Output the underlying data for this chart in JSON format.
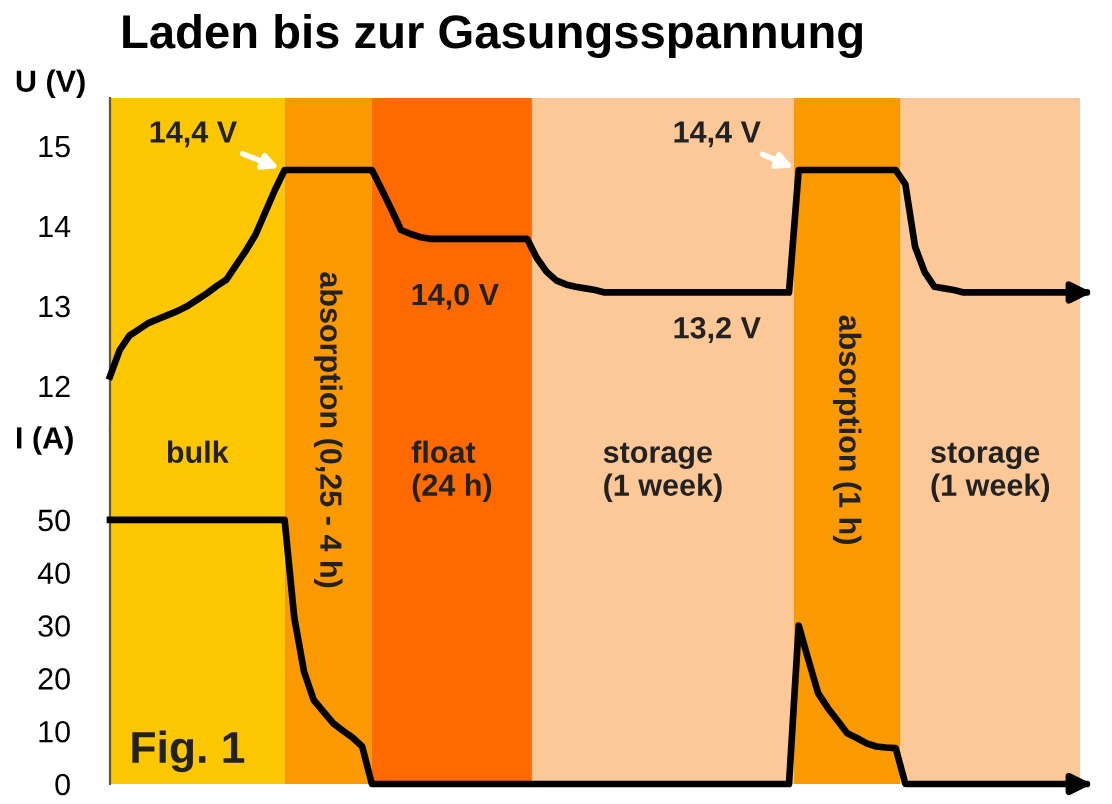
{
  "chart_data": [
    {
      "type": "line",
      "title": "Laden bis zur Gasungsspannung",
      "ylabel": "U (V)",
      "ylim": [
        11.45,
        15.6
      ],
      "yticks": [
        12,
        13,
        14,
        15
      ],
      "tick_labels": "y",
      "categories": [
        null,
        null,
        null,
        null,
        null,
        null,
        null,
        null,
        null,
        null,
        null,
        null,
        null,
        null,
        null,
        null,
        null,
        null,
        null,
        null,
        null,
        null,
        null,
        null,
        null,
        null,
        null,
        null,
        null,
        null,
        null,
        null,
        null,
        null,
        null,
        null,
        null,
        null,
        null,
        null,
        null,
        null,
        null,
        null,
        null,
        null,
        null,
        null,
        null,
        null,
        null,
        null,
        null,
        null,
        null,
        null,
        null,
        null,
        null,
        null,
        null,
        null,
        null,
        null,
        null,
        null,
        null,
        null,
        null,
        null,
        null,
        null,
        null,
        null,
        null,
        null,
        null,
        null,
        null,
        null,
        null,
        null,
        null,
        null,
        null,
        null,
        null,
        null,
        null,
        null,
        null,
        null,
        null,
        null,
        null,
        null,
        null,
        null,
        null,
        null,
        null
      ],
      "series": [
        {
          "color": "#000000",
          "values": [
            12.12,
            12.45,
            12.63,
            12.71,
            12.79,
            12.84,
            12.89,
            12.94,
            13.0,
            13.08,
            13.16,
            13.25,
            13.33,
            13.51,
            13.69,
            13.89,
            14.17,
            14.45,
            14.7,
            14.7,
            14.7,
            14.7,
            14.7,
            14.7,
            14.7,
            14.7,
            14.7,
            14.7,
            14.46,
            14.21,
            13.95,
            13.9,
            13.86,
            13.84,
            13.84,
            13.84,
            13.84,
            13.84,
            13.84,
            13.84,
            13.84,
            13.84,
            13.84,
            13.84,
            13.6,
            13.43,
            13.32,
            13.27,
            13.24,
            13.22,
            13.2,
            13.17,
            13.17,
            13.17,
            13.17,
            13.17,
            13.17,
            13.17,
            13.17,
            13.17,
            13.17,
            13.17,
            13.17,
            13.17,
            13.17,
            13.17,
            13.17,
            13.17,
            13.17,
            13.17,
            13.17,
            14.7,
            14.7,
            14.7,
            14.7,
            14.7,
            14.7,
            14.7,
            14.7,
            14.7,
            14.7,
            14.7,
            14.52,
            13.74,
            13.42,
            13.24,
            13.22,
            13.2,
            13.17,
            13.17,
            13.17,
            13.17,
            13.17,
            13.17,
            13.17,
            13.17,
            13.17,
            13.17,
            13.17,
            13.17,
            13.17
          ]
        }
      ],
      "annotations": [
        "14,4 V",
        "14,0 V",
        "13,2 V",
        "14,4 V"
      ]
    },
    {
      "type": "line",
      "ylabel": "I (A)",
      "ylim": [
        0,
        67
      ],
      "yticks": [
        0,
        10,
        20,
        30,
        40,
        50
      ],
      "tick_labels": "y",
      "categories": [
        null,
        null,
        null,
        null,
        null,
        null,
        null,
        null,
        null,
        null,
        null,
        null,
        null,
        null,
        null,
        null,
        null,
        null,
        null,
        null,
        null,
        null,
        null,
        null,
        null,
        null,
        null,
        null,
        null,
        null,
        null,
        null,
        null,
        null,
        null,
        null,
        null,
        null,
        null,
        null,
        null,
        null,
        null,
        null,
        null,
        null,
        null,
        null,
        null,
        null,
        null,
        null,
        null,
        null,
        null,
        null,
        null,
        null,
        null,
        null,
        null,
        null,
        null,
        null,
        null,
        null,
        null,
        null,
        null,
        null,
        null,
        null,
        null,
        null,
        null,
        null,
        null,
        null,
        null,
        null,
        null,
        null,
        null,
        null,
        null,
        null,
        null,
        null,
        null,
        null,
        null,
        null,
        null,
        null,
        null,
        null,
        null,
        null,
        null,
        null,
        null
      ],
      "series": [
        {
          "color": "#000000",
          "values": [
            50,
            50,
            50,
            50,
            50,
            50,
            50,
            50,
            50,
            50,
            50,
            50,
            50,
            50,
            50,
            50,
            50,
            50,
            50,
            31.5,
            21.3,
            15.9,
            13.7,
            11.5,
            10.1,
            8.8,
            7.1,
            0,
            0,
            0,
            0,
            0,
            0,
            0,
            0,
            0,
            0,
            0,
            0,
            0,
            0,
            0,
            0,
            0,
            0,
            0,
            0,
            0,
            0,
            0,
            0,
            0,
            0,
            0,
            0,
            0,
            0,
            0,
            0,
            0,
            0,
            0,
            0,
            0,
            0,
            0,
            0,
            0,
            0,
            0,
            0,
            30,
            23.5,
            17.2,
            14.4,
            12,
            9.6,
            8.7,
            7.7,
            7.1,
            6.9,
            6.8,
            0,
            0,
            0,
            0,
            0,
            0,
            0,
            0,
            0,
            0,
            0,
            0,
            0,
            0,
            0,
            0,
            0,
            0,
            0
          ]
        }
      ],
      "annotations": [
        "Fig. 1",
        "bulk",
        "absorption (0,25 - 4 h)",
        "float\n(24 h)",
        "storage\n(1 week)",
        "absorption (1 h)",
        "storage\n(1 week)"
      ]
    }
  ]
}
